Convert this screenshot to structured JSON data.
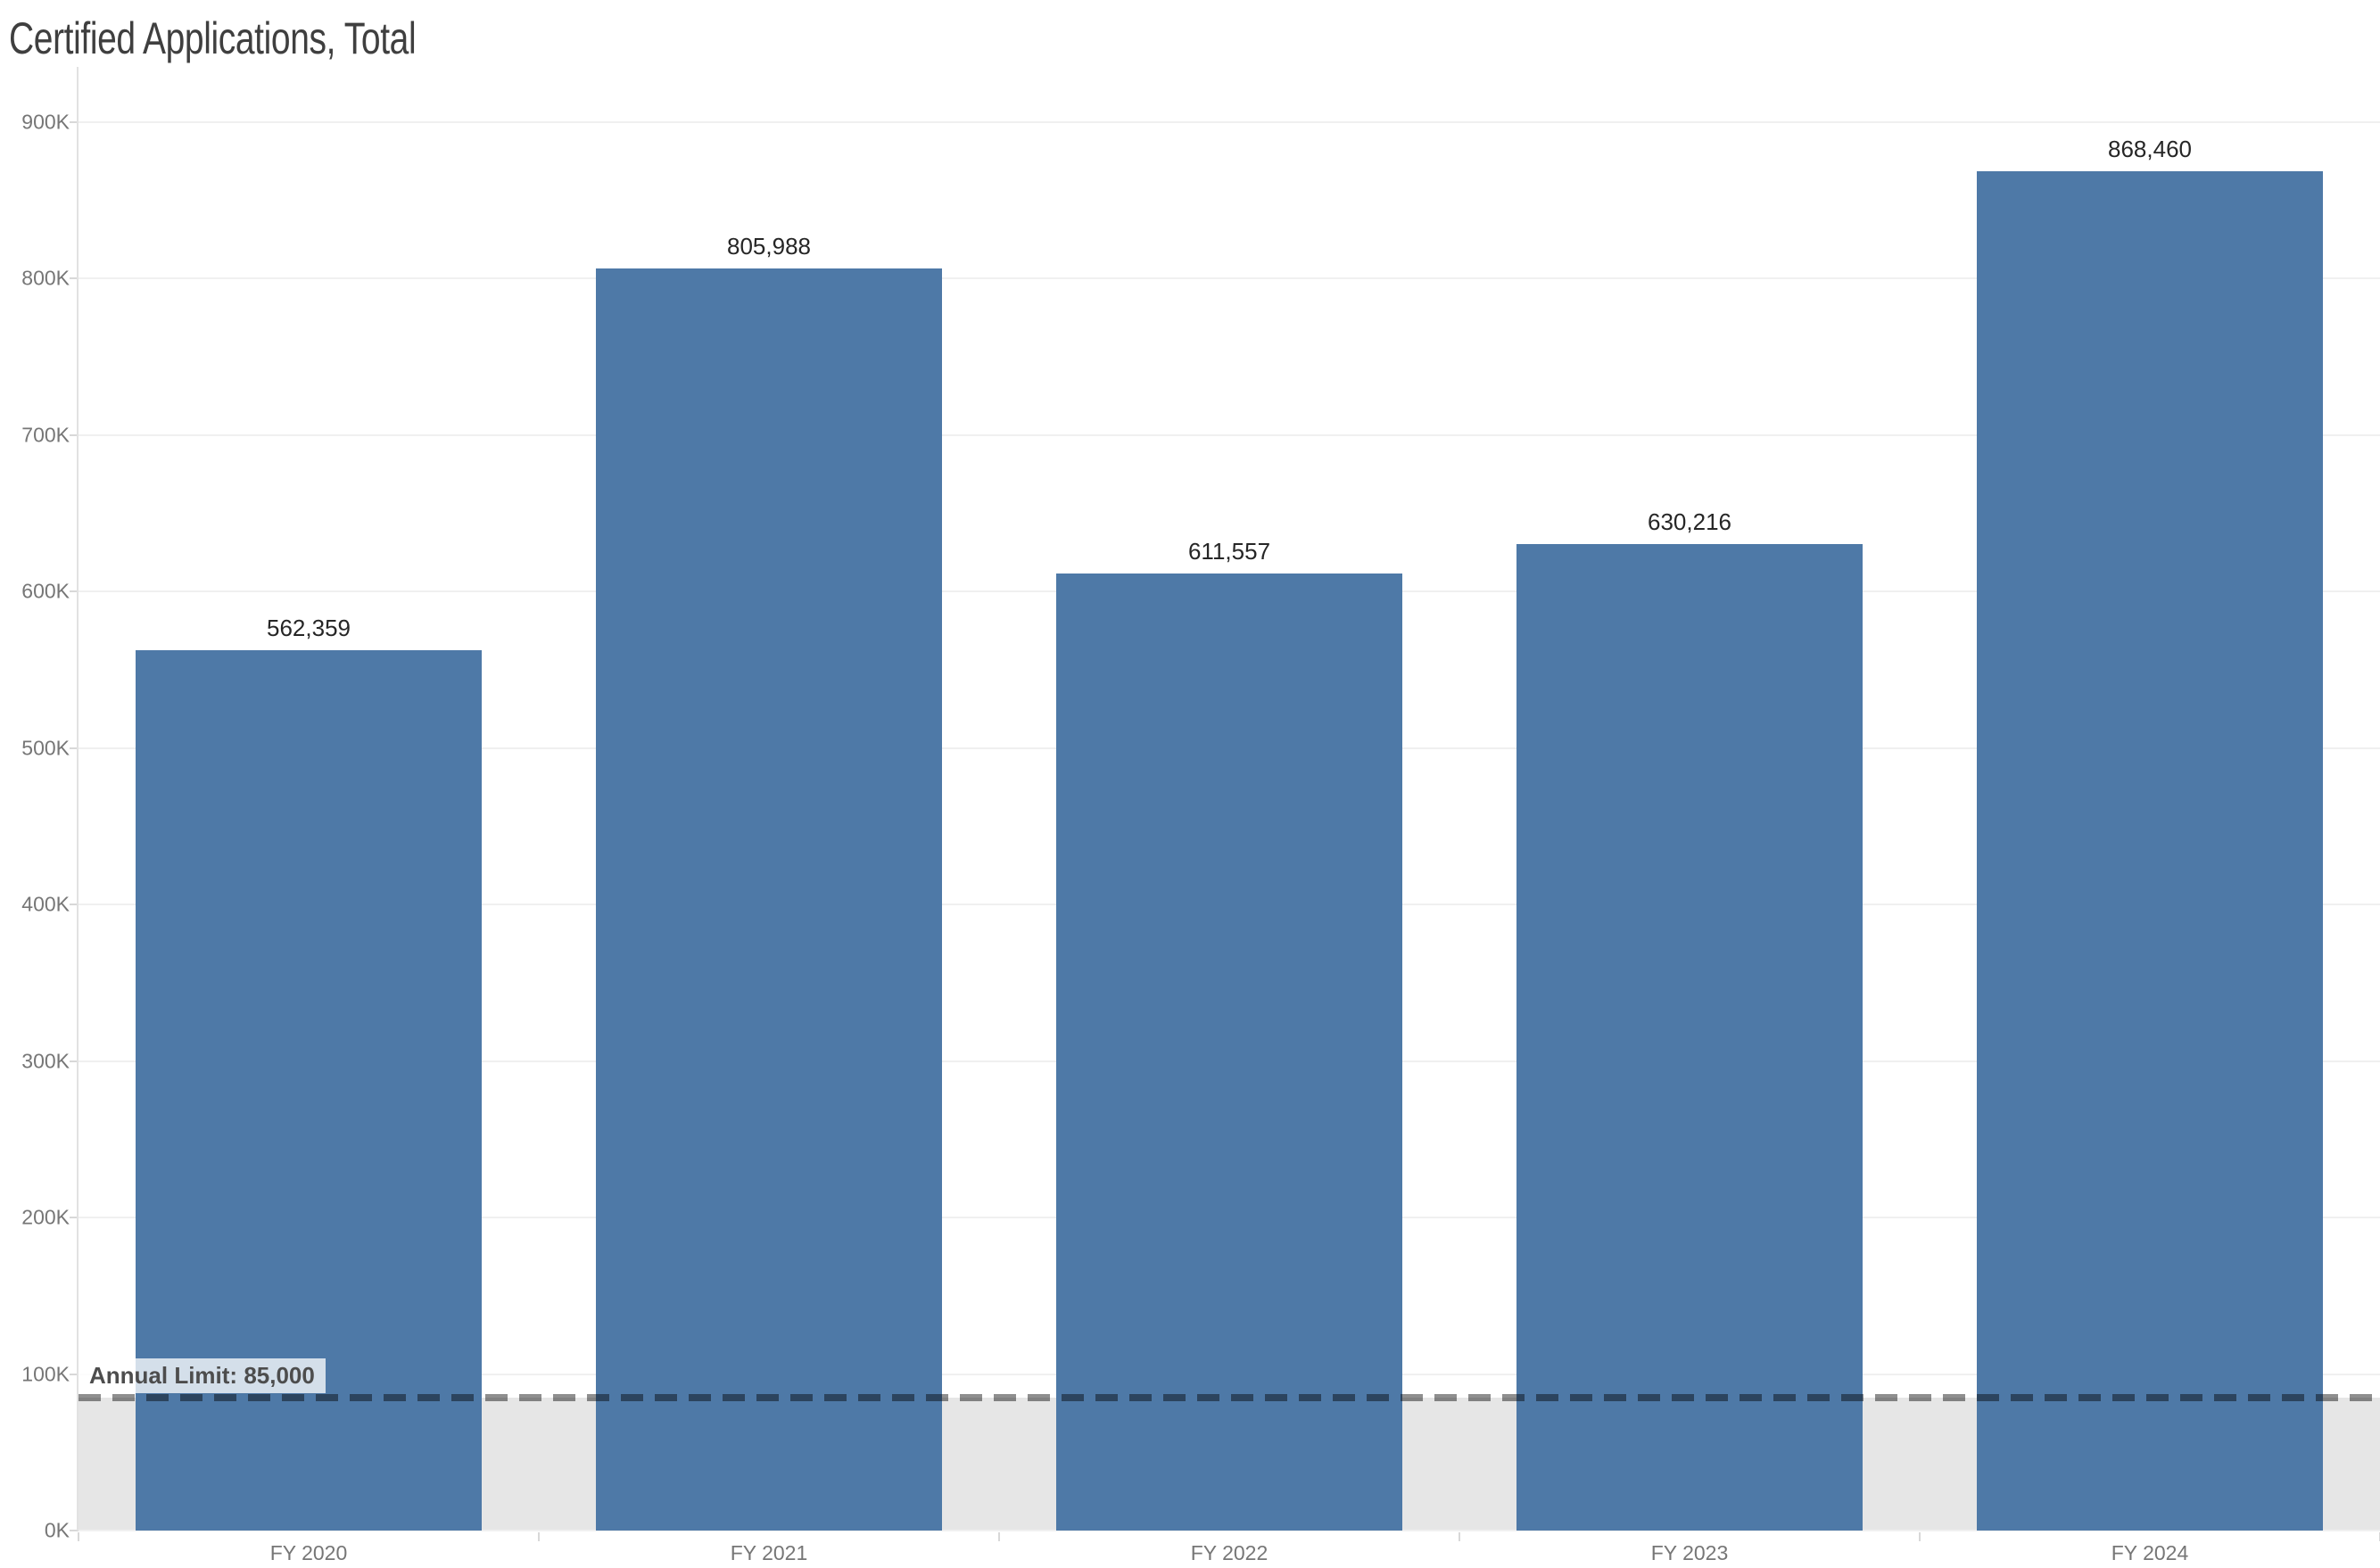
{
  "title": "Certified Applications, Total",
  "colors": {
    "bar": "#4e79a7",
    "reference_band": "#e6e6e6",
    "gridline": "#f0f0f0",
    "axis_line": "#e2e2e2",
    "tick_label": "#767676",
    "data_label": "#262626",
    "title_text": "#3f3f3f",
    "reference_line_dash": "rgba(0,0,0,0.44)"
  },
  "chart_data": {
    "type": "bar",
    "title": "Certified Applications, Total",
    "categories": [
      "FY 2020",
      "FY 2021",
      "FY 2022",
      "FY 2023",
      "FY 2024"
    ],
    "values": [
      562359,
      805988,
      611557,
      630216,
      868460
    ],
    "value_labels": [
      "562,359",
      "805,988",
      "611,557",
      "630,216",
      "868,460"
    ],
    "xlabel": "",
    "ylabel": "",
    "ylim": [
      0,
      935000
    ],
    "yticks": [
      0,
      100000,
      200000,
      300000,
      400000,
      500000,
      600000,
      700000,
      800000,
      900000
    ],
    "ytick_labels": [
      "0K",
      "100K",
      "200K",
      "300K",
      "400K",
      "500K",
      "600K",
      "700K",
      "800K",
      "900K"
    ],
    "grid": "horizontal",
    "legend": "none",
    "reference_line": {
      "label": "Annual Limit: 85,000",
      "value": 85000
    },
    "reference_band": {
      "from": 0,
      "to": 85000
    }
  }
}
